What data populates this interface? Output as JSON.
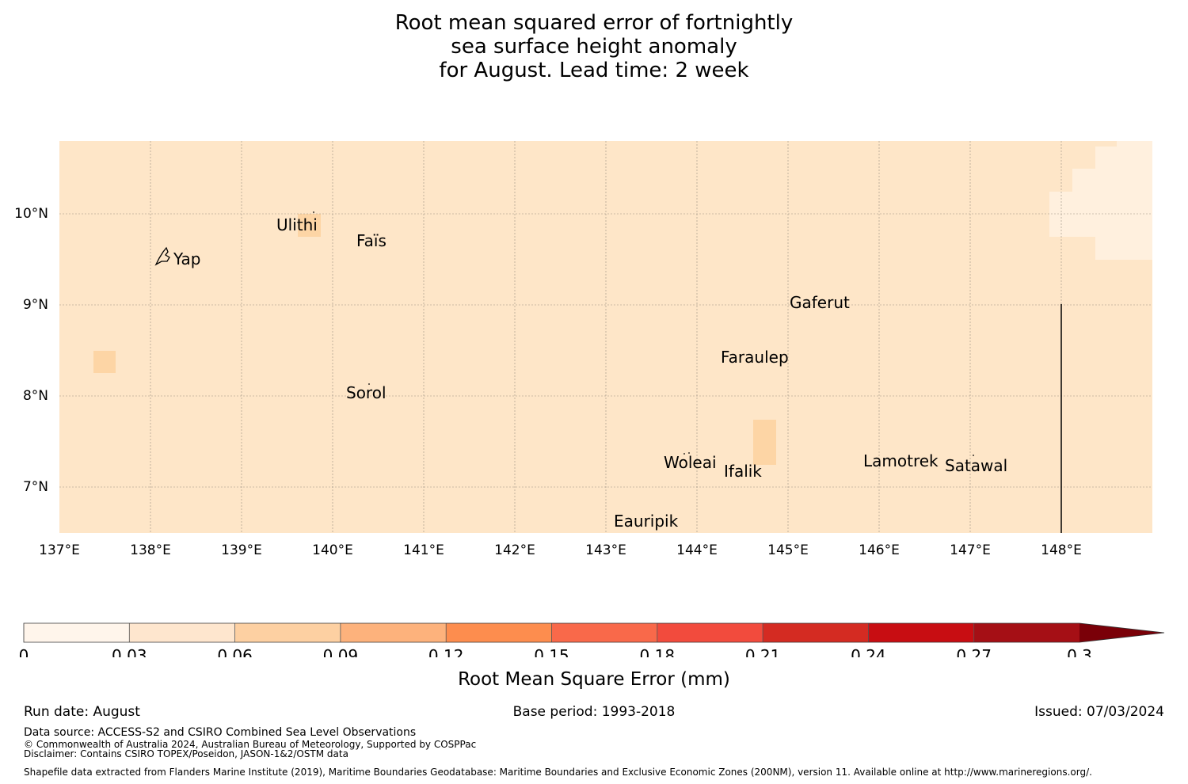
{
  "title": {
    "line1": "Root mean squared error of fortnightly",
    "line2": "sea surface height anomaly",
    "line3": "for August. Lead time: 2 week"
  },
  "map": {
    "lat_ticks": [
      "10°N",
      "9°N",
      "8°N",
      "7°N"
    ],
    "lon_ticks": [
      "137°E",
      "138°E",
      "139°E",
      "140°E",
      "141°E",
      "142°E",
      "143°E",
      "144°E",
      "145°E",
      "146°E",
      "147°E",
      "148°E"
    ],
    "islands": [
      "Ulithi",
      "Faïs",
      "Yap",
      "Gaferut",
      "Faraulep",
      "Sorol",
      "Woleai",
      "Ifalik",
      "Lamotrek",
      "Satawal",
      "Eauripik"
    ],
    "colors": {
      "background": "#fee6c8",
      "light_patch": "#fff0de",
      "dark_patch": "#fdd5a5"
    }
  },
  "colorbar": {
    "ticks": [
      "0",
      "0.03",
      "0.06",
      "0.09",
      "0.12",
      "0.15",
      "0.18",
      "0.21",
      "0.24",
      "0.27",
      "0.3"
    ],
    "colors": [
      "#fff5eb",
      "#fee6ce",
      "#fdd0a2",
      "#fdb27c",
      "#fd8d4e",
      "#f9694a",
      "#f24b3d",
      "#d42b22",
      "#c80d12",
      "#a50f15",
      "#7a0008"
    ],
    "label": "Root Mean Square Error (mm)"
  },
  "footer": {
    "run_date": "Run date: August",
    "base_period": "Base period: 1993-2018",
    "issued": "Issued: 07/03/2024",
    "data_source": "Data source: ACCESS-S2 and CSIRO Combined Sea Level Observations",
    "copyright": "© Commonwealth of Australia 2024, Australian Bureau of Meteorology, Supported by COSPPac",
    "disclaimer": "Disclaimer: Contains CSIRO TOPEX/Poseidon, JASON-1&2/OSTM data",
    "shapefile": "Shapefile data extracted from Flanders Marine Institute (2019), Maritime Boundaries Geodatabase: Maritime Boundaries and Exclusive Economic Zones (200NM), version 11. Available online at http://www.marineregions.org/."
  }
}
